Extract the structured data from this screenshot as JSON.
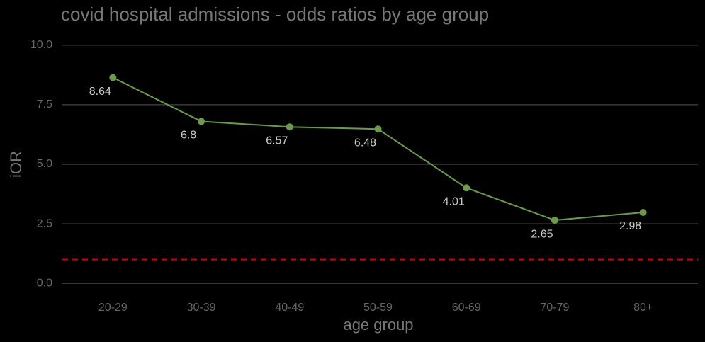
{
  "chart_data": {
    "type": "line",
    "title": "covid hospital admissions - odds ratios by age group",
    "x_label": "age group",
    "y_label": "iOR",
    "categories": [
      "20-29",
      "30-39",
      "40-49",
      "50-59",
      "60-69",
      "70-79",
      "80+"
    ],
    "values": [
      8.64,
      6.8,
      6.57,
      6.48,
      4.01,
      2.65,
      2.98
    ],
    "color": "#6a9a4a",
    "ylim": [
      -0.5,
      10.5
    ],
    "yticks": [
      {
        "value": 0,
        "label": "0.0"
      },
      {
        "value": 2.5,
        "label": "2.5"
      },
      {
        "value": 5,
        "label": "5.0"
      },
      {
        "value": 7.5,
        "label": "7.5"
      },
      {
        "value": 10,
        "label": "10.0"
      }
    ],
    "grid": true,
    "reference_line": {
      "value": 1,
      "color": "#cc0000"
    }
  }
}
